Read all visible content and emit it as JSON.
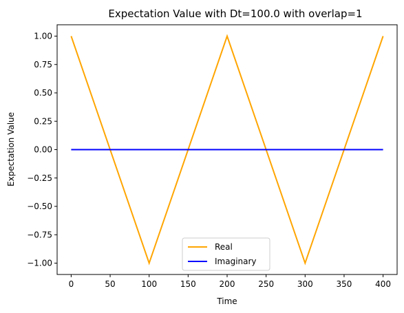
{
  "chart_data": {
    "type": "line",
    "title": "Expectation Value with Dt=100.0 with overlap=1",
    "xlabel": "Time",
    "ylabel": "Expectation Value",
    "xlim": [
      -18,
      418
    ],
    "ylim": [
      -1.1,
      1.1
    ],
    "x_ticks": [
      0,
      50,
      100,
      150,
      200,
      250,
      300,
      350,
      400
    ],
    "x_tick_labels": [
      "0",
      "50",
      "100",
      "150",
      "200",
      "250",
      "300",
      "350",
      "400"
    ],
    "y_ticks": [
      1.0,
      0.75,
      0.5,
      0.25,
      0.0,
      -0.25,
      -0.5,
      -0.75,
      -1.0
    ],
    "y_tick_labels": [
      "1.00",
      "0.75",
      "0.50",
      "0.25",
      "0.00",
      "−0.25",
      "−0.50",
      "−0.75",
      "−1.00"
    ],
    "grid": false,
    "legend_position": "bottom-center",
    "series": [
      {
        "name": "Real",
        "color": "#ffa500",
        "x": [
          0,
          100,
          200,
          300,
          400
        ],
        "y": [
          1.0,
          -1.0,
          1.0,
          -1.0,
          1.0
        ]
      },
      {
        "name": "Imaginary",
        "color": "#0000ff",
        "x": [
          0,
          400
        ],
        "y": [
          0.0,
          0.0
        ]
      }
    ]
  }
}
